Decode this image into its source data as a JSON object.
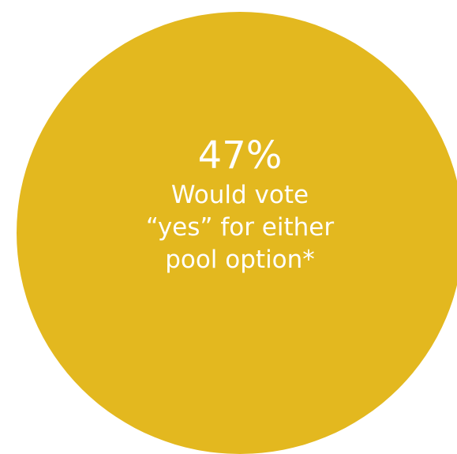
{
  "stat": {
    "value": "47%",
    "label_lines": [
      "Would vote",
      "“yes” for either",
      "pool option*"
    ],
    "circle_color": "#e3b81f",
    "text_color": "#ffffff"
  }
}
